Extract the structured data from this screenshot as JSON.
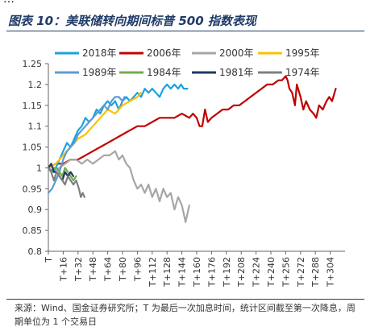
{
  "header": {
    "top_strip_text": "…",
    "figure_title": "图表 10：美联储转向期间标普 500 指数表现"
  },
  "footer": {
    "source_note": "来源：Wind、国金证券研究所；T 为最后一次加息时间，统计区间截至第一次降息，周期单位为 1 个交易日"
  },
  "chart_data": {
    "type": "line",
    "title": "",
    "xlabel": "",
    "ylabel": "",
    "ylim": [
      0.8,
      1.25
    ],
    "yticks": [
      0.8,
      0.85,
      0.9,
      0.95,
      1,
      1.05,
      1.1,
      1.15,
      1.2,
      1.25
    ],
    "ytick_labels": [
      "0.8",
      "0.85",
      "0.9",
      "0.95",
      "1",
      "1.05",
      "1.1",
      "1.15",
      "1.2",
      "1.25"
    ],
    "xlim": [
      0,
      320
    ],
    "xticks": [
      0,
      16,
      32,
      48,
      64,
      80,
      96,
      112,
      128,
      144,
      160,
      176,
      192,
      208,
      224,
      240,
      256,
      272,
      288,
      304
    ],
    "xtick_labels": [
      "T",
      "T+16",
      "T+32",
      "T+48",
      "T+64",
      "T+80",
      "T+96",
      "T+112",
      "T+128",
      "T+144",
      "T+160",
      "T+176",
      "T+192",
      "T+208",
      "T+224",
      "T+240",
      "T+256",
      "T+272",
      "T+288",
      "T+304"
    ],
    "grid": false,
    "legend_position": "top, inside plot, two rows",
    "series": [
      {
        "name": "2018年",
        "color": "#1aa3e0",
        "points": [
          [
            0,
            1.0
          ],
          [
            4,
            0.99
          ],
          [
            8,
            1.0
          ],
          [
            12,
            1.02
          ],
          [
            16,
            1.04
          ],
          [
            20,
            1.06
          ],
          [
            24,
            1.05
          ],
          [
            28,
            1.07
          ],
          [
            32,
            1.09
          ],
          [
            36,
            1.1
          ],
          [
            40,
            1.12
          ],
          [
            44,
            1.11
          ],
          [
            48,
            1.12
          ],
          [
            52,
            1.14
          ],
          [
            56,
            1.13
          ],
          [
            60,
            1.15
          ],
          [
            64,
            1.16
          ],
          [
            68,
            1.15
          ],
          [
            72,
            1.16
          ],
          [
            76,
            1.14
          ],
          [
            80,
            1.16
          ],
          [
            84,
            1.17
          ],
          [
            88,
            1.16
          ],
          [
            92,
            1.17
          ],
          [
            96,
            1.18
          ],
          [
            100,
            1.17
          ],
          [
            104,
            1.19
          ],
          [
            108,
            1.18
          ],
          [
            112,
            1.19
          ],
          [
            116,
            1.18
          ],
          [
            120,
            1.17
          ],
          [
            124,
            1.19
          ],
          [
            128,
            1.2
          ],
          [
            132,
            1.19
          ],
          [
            136,
            1.2
          ],
          [
            140,
            1.19
          ],
          [
            143,
            1.2
          ],
          [
            146,
            1.19
          ],
          [
            150,
            1.19
          ]
        ]
      },
      {
        "name": "2006年",
        "color": "#c00000",
        "points": [
          [
            0,
            1.0
          ],
          [
            8,
            1.01
          ],
          [
            16,
            1.01
          ],
          [
            24,
            1.02
          ],
          [
            32,
            1.02
          ],
          [
            40,
            1.03
          ],
          [
            48,
            1.04
          ],
          [
            56,
            1.05
          ],
          [
            64,
            1.06
          ],
          [
            72,
            1.07
          ],
          [
            80,
            1.08
          ],
          [
            88,
            1.09
          ],
          [
            96,
            1.1
          ],
          [
            104,
            1.1
          ],
          [
            112,
            1.11
          ],
          [
            120,
            1.12
          ],
          [
            128,
            1.12
          ],
          [
            136,
            1.12
          ],
          [
            144,
            1.13
          ],
          [
            152,
            1.12
          ],
          [
            156,
            1.13
          ],
          [
            160,
            1.12
          ],
          [
            163,
            1.1
          ],
          [
            166,
            1.1
          ],
          [
            169,
            1.14
          ],
          [
            172,
            1.11
          ],
          [
            176,
            1.12
          ],
          [
            182,
            1.13
          ],
          [
            188,
            1.14
          ],
          [
            194,
            1.14
          ],
          [
            200,
            1.15
          ],
          [
            206,
            1.15
          ],
          [
            212,
            1.16
          ],
          [
            218,
            1.17
          ],
          [
            224,
            1.18
          ],
          [
            230,
            1.19
          ],
          [
            236,
            1.2
          ],
          [
            242,
            1.2
          ],
          [
            248,
            1.21
          ],
          [
            252,
            1.21
          ],
          [
            256,
            1.22
          ],
          [
            258,
            1.21
          ],
          [
            260,
            1.19
          ],
          [
            263,
            1.18
          ],
          [
            266,
            1.15
          ],
          [
            268,
            1.2
          ],
          [
            272,
            1.17
          ],
          [
            275,
            1.14
          ],
          [
            278,
            1.16
          ],
          [
            282,
            1.14
          ],
          [
            286,
            1.13
          ],
          [
            289,
            1.12
          ],
          [
            292,
            1.15
          ],
          [
            296,
            1.14
          ],
          [
            300,
            1.16
          ],
          [
            303,
            1.17
          ],
          [
            306,
            1.16
          ],
          [
            310,
            1.19
          ]
        ]
      },
      {
        "name": "2000年",
        "color": "#a6a6a6",
        "points": [
          [
            0,
            1.0
          ],
          [
            6,
            0.99
          ],
          [
            12,
            1.0
          ],
          [
            18,
            1.01
          ],
          [
            24,
            1.02
          ],
          [
            30,
            1.02
          ],
          [
            36,
            1.01
          ],
          [
            42,
            1.02
          ],
          [
            48,
            1.01
          ],
          [
            54,
            1.02
          ],
          [
            60,
            1.03
          ],
          [
            66,
            1.03
          ],
          [
            72,
            1.04
          ],
          [
            76,
            1.02
          ],
          [
            80,
            1.03
          ],
          [
            84,
            1.01
          ],
          [
            88,
            1.0
          ],
          [
            92,
            0.97
          ],
          [
            96,
            0.95
          ],
          [
            100,
            0.96
          ],
          [
            104,
            0.94
          ],
          [
            108,
            0.96
          ],
          [
            112,
            0.93
          ],
          [
            116,
            0.95
          ],
          [
            120,
            0.92
          ],
          [
            124,
            0.95
          ],
          [
            128,
            0.93
          ],
          [
            132,
            0.94
          ],
          [
            136,
            0.9
          ],
          [
            140,
            0.93
          ],
          [
            144,
            0.91
          ],
          [
            148,
            0.87
          ],
          [
            150,
            0.89
          ],
          [
            152,
            0.91
          ]
        ]
      },
      {
        "name": "1995年",
        "color": "#ffc000",
        "points": [
          [
            0,
            1.0
          ],
          [
            8,
            1.01
          ],
          [
            16,
            1.03
          ],
          [
            24,
            1.05
          ],
          [
            32,
            1.07
          ],
          [
            40,
            1.08
          ],
          [
            48,
            1.1
          ],
          [
            56,
            1.12
          ],
          [
            64,
            1.14
          ],
          [
            72,
            1.13
          ],
          [
            80,
            1.15
          ],
          [
            88,
            1.16
          ],
          [
            96,
            1.17
          ],
          [
            100,
            1.18
          ]
        ]
      },
      {
        "name": "1989年",
        "color": "#5b9bd5",
        "points": [
          [
            0,
            0.94
          ],
          [
            4,
            0.95
          ],
          [
            8,
            0.97
          ],
          [
            12,
            0.99
          ],
          [
            16,
            1.02
          ],
          [
            20,
            1.04
          ],
          [
            24,
            1.05
          ],
          [
            28,
            1.06
          ],
          [
            32,
            1.08
          ],
          [
            36,
            1.09
          ],
          [
            40,
            1.1
          ],
          [
            44,
            1.11
          ],
          [
            48,
            1.12
          ],
          [
            52,
            1.13
          ],
          [
            56,
            1.14
          ],
          [
            60,
            1.15
          ],
          [
            64,
            1.14
          ],
          [
            68,
            1.16
          ],
          [
            72,
            1.17
          ],
          [
            76,
            1.17
          ],
          [
            80,
            1.16
          ],
          [
            82,
            1.17
          ]
        ]
      },
      {
        "name": "1984年",
        "color": "#70ad47",
        "points": [
          [
            0,
            1.0
          ],
          [
            3,
            0.99
          ],
          [
            6,
            1.0
          ],
          [
            9,
            1.0
          ],
          [
            12,
            0.99
          ],
          [
            15,
            0.98
          ],
          [
            18,
            1.0
          ],
          [
            21,
            0.99
          ],
          [
            24,
            0.98
          ],
          [
            27,
            0.97
          ],
          [
            30,
            0.98
          ]
        ]
      },
      {
        "name": "1981年",
        "color": "#1f3864",
        "points": [
          [
            0,
            1.0
          ],
          [
            3,
            1.01
          ],
          [
            6,
            0.99
          ],
          [
            9,
            0.99
          ],
          [
            12,
            0.98
          ],
          [
            15,
            0.97
          ],
          [
            18,
            0.99
          ],
          [
            21,
            0.98
          ],
          [
            24,
            0.99
          ],
          [
            27,
            0.98
          ]
        ]
      },
      {
        "name": "1974年",
        "color": "#7f7f7f",
        "points": [
          [
            0,
            1.0
          ],
          [
            3,
            0.99
          ],
          [
            6,
            0.97
          ],
          [
            9,
            0.99
          ],
          [
            12,
            0.98
          ],
          [
            15,
            0.97
          ],
          [
            18,
            0.96
          ],
          [
            21,
            0.98
          ],
          [
            24,
            0.97
          ],
          [
            27,
            0.96
          ],
          [
            30,
            0.97
          ],
          [
            33,
            0.95
          ],
          [
            35,
            0.93
          ],
          [
            37,
            0.94
          ],
          [
            39,
            0.93
          ]
        ]
      }
    ]
  }
}
